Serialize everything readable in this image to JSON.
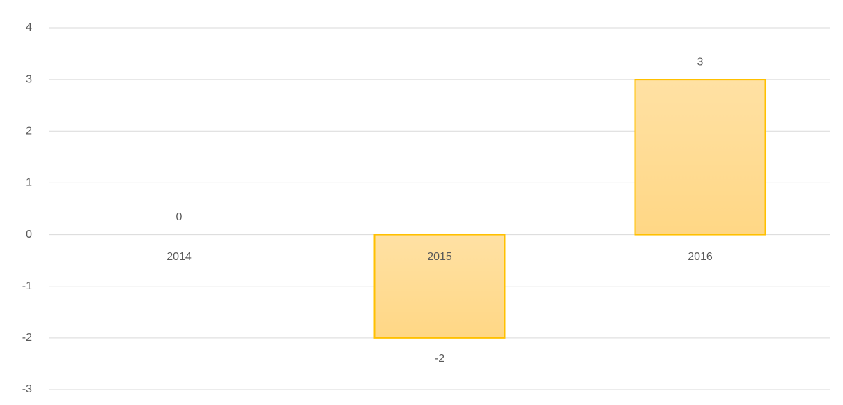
{
  "chart_data": {
    "type": "bar",
    "categories": [
      "2014",
      "2015",
      "2016"
    ],
    "values": [
      0,
      -2,
      3
    ],
    "color": "#ffd785",
    "edge_color": "#ffc000",
    "ylim": [
      -3,
      4
    ],
    "yticks": [
      -3,
      -2,
      -1,
      0,
      1,
      2,
      3,
      4
    ],
    "grid": true
  }
}
